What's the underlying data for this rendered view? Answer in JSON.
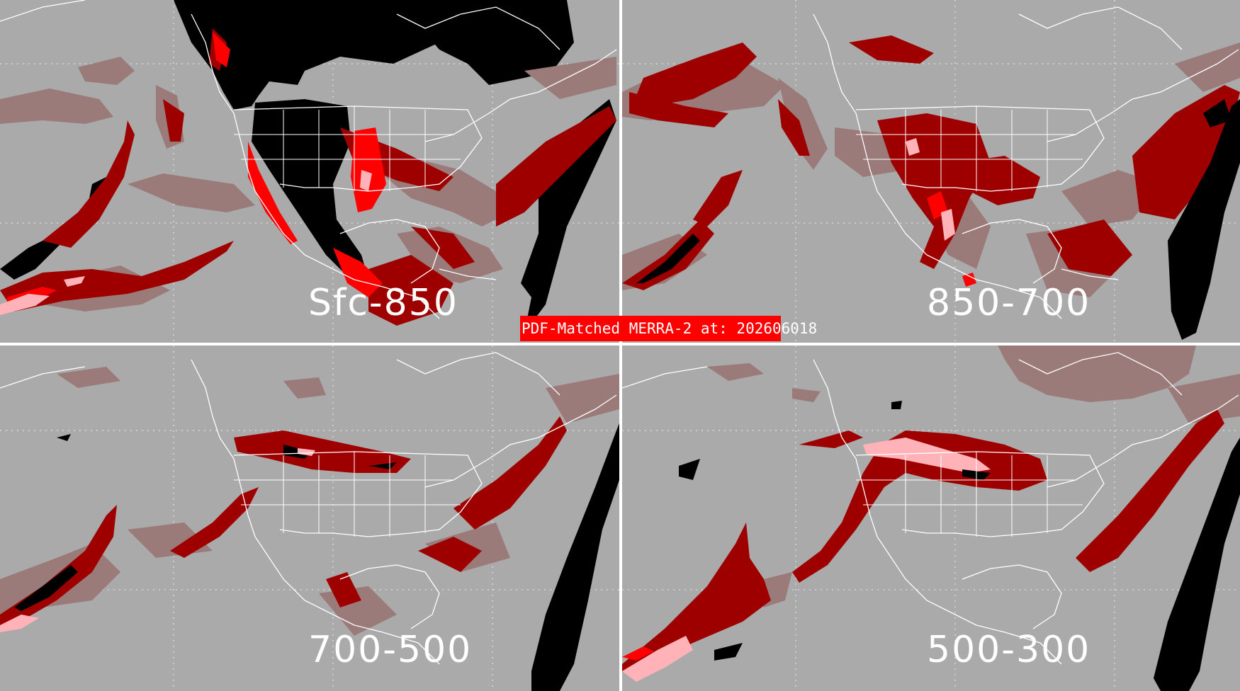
{
  "banner": {
    "text": "PDF-Matched MERRA-2 at: 202606018",
    "color": "#ff0000"
  },
  "panels": [
    {
      "id": "tl",
      "label": "Sfc-850"
    },
    {
      "id": "tr",
      "label": "850-700"
    },
    {
      "id": "bl",
      "label": "700-500"
    },
    {
      "id": "br",
      "label": "500-300"
    }
  ],
  "colors": {
    "background_gray": "#aaaaaa",
    "mauve": "#9b7a7a",
    "dark_red": "#9e0000",
    "red": "#ff0000",
    "pink": "#ffb3b8",
    "black": "#000000",
    "map_lines": "#ffffff"
  }
}
